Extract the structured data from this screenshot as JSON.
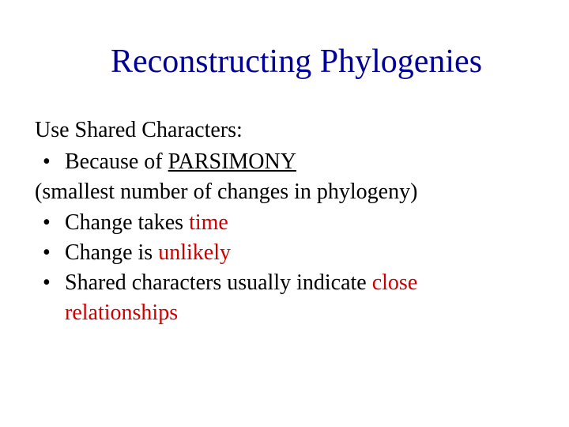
{
  "title": "Reconstructing Phylogenies",
  "lead": "Use Shared Characters:",
  "bullet1_prefix": "Because of ",
  "bullet1_keyword": "PARSIMONY",
  "paren": "(smallest number of changes in phylogeny)",
  "bullet2_prefix": "Change takes ",
  "bullet2_keyword": "time",
  "bullet3_prefix": "Change is ",
  "bullet3_keyword": "unlikely",
  "bullet4_prefix": "Shared characters usually indicate ",
  "bullet4_keyword": "close",
  "bullet4_cont": "relationships",
  "bullet_char": "•",
  "colors": {
    "title": "#000099",
    "body": "#000000",
    "emphasis": "#cc0000",
    "background": "#ffffff"
  },
  "fontsize": {
    "title": 42,
    "body": 28
  }
}
